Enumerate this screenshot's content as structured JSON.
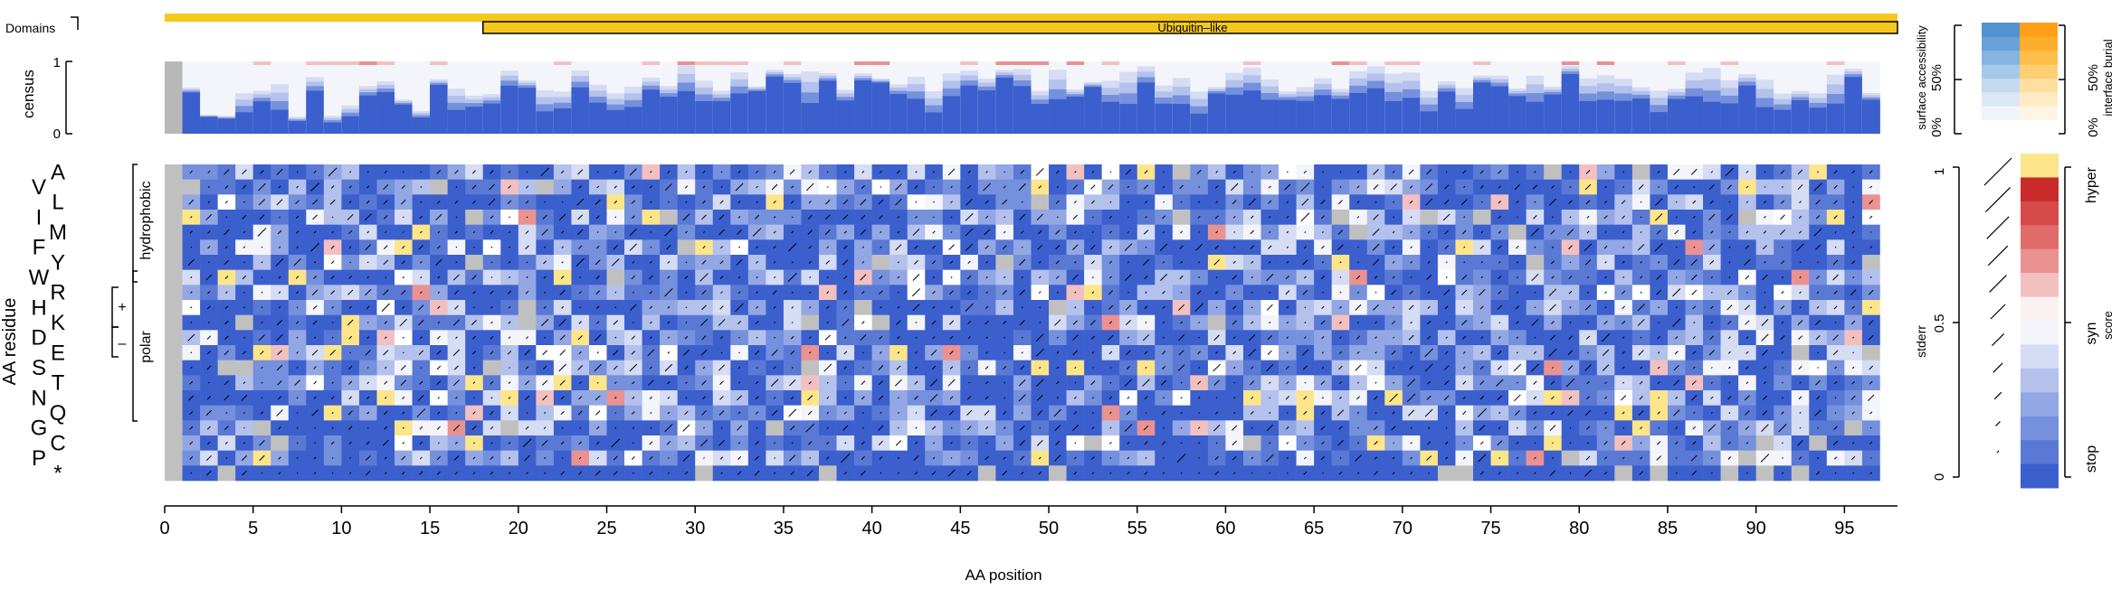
{
  "chart_data": {
    "type": "heatmap",
    "xlabel": "AA position",
    "ylabel": "AA residue",
    "xlim": [
      0,
      98
    ],
    "x_ticks": [
      0,
      5,
      10,
      15,
      20,
      25,
      30,
      35,
      40,
      45,
      50,
      55,
      60,
      65,
      70,
      75,
      80,
      85,
      90,
      95
    ],
    "n_positions": 97,
    "residues": [
      "A",
      "V",
      "L",
      "I",
      "M",
      "F",
      "Y",
      "W",
      "R",
      "H",
      "K",
      "D",
      "E",
      "S",
      "T",
      "N",
      "Q",
      "G",
      "C",
      "P",
      "*"
    ],
    "residue_groups": [
      {
        "label": "hydrophobic",
        "first": "A",
        "last": "W"
      },
      {
        "label": "polar",
        "first": "Y",
        "last": "*"
      },
      {
        "label": "+",
        "first": "R",
        "last": "H"
      },
      {
        "label": "–",
        "first": "D",
        "last": "E"
      }
    ],
    "domains_track": {
      "label": "Domains",
      "full_range": [
        1,
        98
      ],
      "domains": [
        {
          "name": "Ubiquitin–like",
          "start": 19,
          "end": 98
        }
      ]
    },
    "census_track": {
      "label": "census",
      "ylim": [
        0,
        1
      ],
      "y_ticks": [
        "0",
        "1"
      ]
    },
    "score_legend": {
      "title": "score",
      "labels": [
        "hyper",
        "syn",
        "stop"
      ],
      "colors": [
        "#fde58a",
        "#c92a2a",
        "#d64a4a",
        "#e06b6b",
        "#ea9191",
        "#f3c0c0",
        "#faf2f2",
        "#f4f5fb",
        "#d5dcf3",
        "#b3c1ec",
        "#93a7e4",
        "#7590dc",
        "#5a79d5",
        "#3b5fcd"
      ]
    },
    "stderr_legend": {
      "title": "stderr",
      "ticks": [
        "0",
        "0.5",
        "1"
      ]
    },
    "accessibility_legend": {
      "left_title": "surface accessibility",
      "right_title": "interface burial",
      "ticks": [
        "0%",
        "50%"
      ]
    },
    "colors": {
      "stop": "#3b5fcd",
      "neutral": "#f4f5fb",
      "hyper": "#fde58a",
      "high": "#c92a2a",
      "missing": "#c0c0c0",
      "domain": "#f5c81e",
      "census_missing": "#b8b8b8"
    }
  }
}
